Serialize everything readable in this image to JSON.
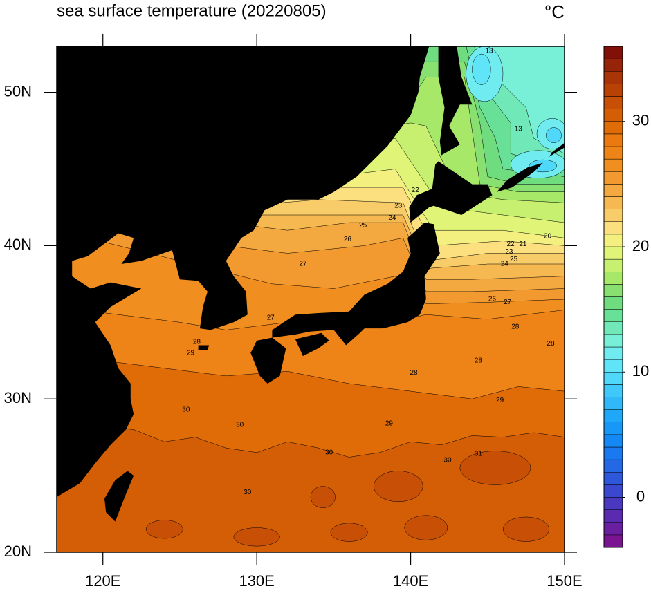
{
  "chart_data": {
    "type": "contour-map",
    "title": "sea surface temperature (20220805)",
    "unit": "°C",
    "xlim": [
      117,
      150
    ],
    "ylim": [
      20,
      53
    ],
    "xticks": [
      {
        "value": 120,
        "label": "120E"
      },
      {
        "value": 130,
        "label": "130E"
      },
      {
        "value": 140,
        "label": "140E"
      },
      {
        "value": 150,
        "label": "150E"
      }
    ],
    "yticks": [
      {
        "value": 20,
        "label": "20N"
      },
      {
        "value": 30,
        "label": "30N"
      },
      {
        "value": 40,
        "label": "40N"
      },
      {
        "value": 50,
        "label": "50N"
      }
    ],
    "colorbar": {
      "lim": [
        -4,
        36
      ],
      "ticks": [
        0,
        10,
        20,
        30
      ],
      "colors": [
        "#7a1490",
        "#6a1fa0",
        "#5a2bb0",
        "#4a38c0",
        "#3a48d0",
        "#2e58dc",
        "#2468e6",
        "#1a78f0",
        "#1488f4",
        "#1898f6",
        "#20a8f8",
        "#30b8f8",
        "#40c8fa",
        "#50d8fa",
        "#60e4f8",
        "#70ecf0",
        "#78f0d8",
        "#70e8b8",
        "#68e098",
        "#70dc80",
        "#88e070",
        "#a8e868",
        "#c8f070",
        "#e0f478",
        "#f4f080",
        "#fce080",
        "#f8cc68",
        "#f6b850",
        "#f4a840",
        "#f29a30",
        "#f08e20",
        "#ee8418",
        "#ea7a10",
        "#e06c08",
        "#d45e06",
        "#c85006",
        "#b84206",
        "#a83408",
        "#962408",
        "#801008"
      ]
    },
    "contour_labels": [
      {
        "value": 22,
        "lon": 140.3,
        "lat": 43.6
      },
      {
        "value": 23,
        "lon": 139.2,
        "lat": 42.6
      },
      {
        "value": 24,
        "lon": 138.8,
        "lat": 41.8
      },
      {
        "value": 25,
        "lon": 136.9,
        "lat": 41.3
      },
      {
        "value": 26,
        "lon": 135.9,
        "lat": 40.4
      },
      {
        "value": 27,
        "lon": 133.0,
        "lat": 38.8
      },
      {
        "value": 27,
        "lon": 130.9,
        "lat": 35.3
      },
      {
        "value": 28,
        "lon": 126.1,
        "lat": 33.7
      },
      {
        "value": 29,
        "lon": 125.7,
        "lat": 33.0
      },
      {
        "value": 28,
        "lon": 140.2,
        "lat": 31.7
      },
      {
        "value": 29,
        "lon": 145.8,
        "lat": 29.9
      },
      {
        "value": 29,
        "lon": 138.6,
        "lat": 28.4
      },
      {
        "value": 30,
        "lon": 125.4,
        "lat": 29.3
      },
      {
        "value": 30,
        "lon": 128.9,
        "lat": 28.3
      },
      {
        "value": 30,
        "lon": 134.7,
        "lat": 26.5
      },
      {
        "value": 30,
        "lon": 142.4,
        "lat": 26.0
      },
      {
        "value": 31,
        "lon": 144.4,
        "lat": 26.4
      },
      {
        "value": 30,
        "lon": 129.4,
        "lat": 23.9
      },
      {
        "value": 28,
        "lon": 144.4,
        "lat": 32.5
      },
      {
        "value": 28,
        "lon": 146.8,
        "lat": 34.7
      },
      {
        "value": 28,
        "lon": 149.1,
        "lat": 33.6
      },
      {
        "value": 13,
        "lon": 145.1,
        "lat": 52.7
      },
      {
        "value": 13,
        "lon": 147.0,
        "lat": 47.6
      },
      {
        "value": 20,
        "lon": 148.9,
        "lat": 40.6
      },
      {
        "value": 21,
        "lon": 147.3,
        "lat": 40.1
      },
      {
        "value": 22,
        "lon": 146.5,
        "lat": 40.1
      },
      {
        "value": 23,
        "lon": 146.4,
        "lat": 39.6
      },
      {
        "value": 24,
        "lon": 146.1,
        "lat": 38.8
      },
      {
        "value": 25,
        "lon": 146.7,
        "lat": 39.1
      },
      {
        "value": 26,
        "lon": 145.3,
        "lat": 36.5
      },
      {
        "value": 27,
        "lon": 146.3,
        "lat": 36.3
      }
    ]
  }
}
